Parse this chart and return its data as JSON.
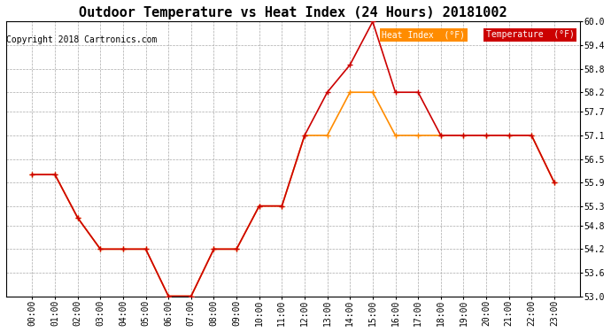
{
  "title": "Outdoor Temperature vs Heat Index (24 Hours) 20181002",
  "copyright": "Copyright 2018 Cartronics.com",
  "hours": [
    "00:00",
    "01:00",
    "02:00",
    "03:00",
    "04:00",
    "05:00",
    "06:00",
    "07:00",
    "08:00",
    "09:00",
    "10:00",
    "11:00",
    "12:00",
    "13:00",
    "14:00",
    "15:00",
    "16:00",
    "17:00",
    "18:00",
    "19:00",
    "20:00",
    "21:00",
    "22:00",
    "23:00"
  ],
  "temperature": [
    56.1,
    56.1,
    55.0,
    54.2,
    54.2,
    54.2,
    53.0,
    53.0,
    54.2,
    54.2,
    55.3,
    55.3,
    57.1,
    58.2,
    58.9,
    60.0,
    58.2,
    58.2,
    57.1,
    57.1,
    57.1,
    57.1,
    57.1,
    55.9
  ],
  "heat_index": [
    56.1,
    56.1,
    55.0,
    54.2,
    54.2,
    54.2,
    53.0,
    53.0,
    54.2,
    54.2,
    55.3,
    55.3,
    57.1,
    57.1,
    58.2,
    58.2,
    57.1,
    57.1,
    57.1,
    57.1,
    57.1,
    57.1,
    57.1,
    55.9
  ],
  "temp_color": "#cc0000",
  "heat_index_color": "#ff8c00",
  "ylim": [
    53.0,
    60.0
  ],
  "yticks": [
    53.0,
    53.6,
    54.2,
    54.8,
    55.3,
    55.9,
    56.5,
    57.1,
    57.7,
    58.2,
    58.8,
    59.4,
    60.0
  ],
  "background_color": "#ffffff",
  "grid_color": "#aaaaaa",
  "title_fontsize": 11,
  "copyright_fontsize": 7,
  "tick_fontsize": 7,
  "legend_heat_label": "Heat Index  (°F)",
  "legend_temp_label": "Temperature  (°F)",
  "legend_heat_bg": "#ff8c00",
  "legend_temp_bg": "#cc0000",
  "legend_text_color": "#ffffff"
}
